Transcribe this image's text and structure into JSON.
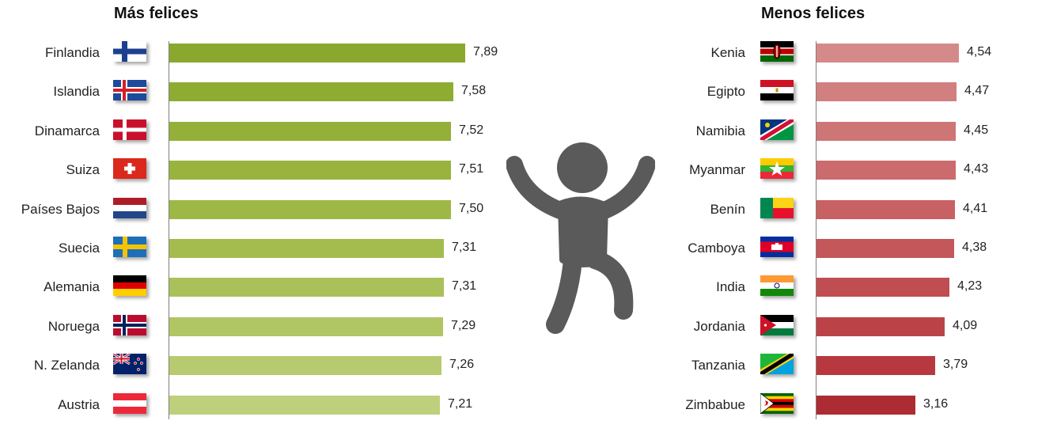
{
  "chart_data": [
    {
      "type": "bar",
      "orientation": "horizontal",
      "title": "Más felices",
      "categories": [
        "Finlandia",
        "Islandia",
        "Dinamarca",
        "Suiza",
        "Países Bajos",
        "Suecia",
        "Alemania",
        "Noruega",
        "N. Zelanda",
        "Austria"
      ],
      "values": [
        7.89,
        7.58,
        7.52,
        7.51,
        7.5,
        7.31,
        7.31,
        7.29,
        7.26,
        7.21
      ],
      "value_labels": [
        "7,89",
        "7,58",
        "7,52",
        "7,51",
        "7,50",
        "7,31",
        "7,31",
        "7,29",
        "7,26",
        "7,21"
      ],
      "flags": [
        "flag-finland-icon",
        "flag-iceland-icon",
        "flag-denmark-icon",
        "flag-switzerland-icon",
        "flag-netherlands-icon",
        "flag-sweden-icon",
        "flag-germany-icon",
        "flag-norway-icon",
        "flag-new-zealand-icon",
        "flag-austria-icon"
      ],
      "colors": [
        "#8aa82e",
        "#8fac32",
        "#94b038",
        "#99b43e",
        "#9eb845",
        "#a4bc4e",
        "#aac058",
        "#b0c563",
        "#b7ca6f",
        "#bed07c"
      ],
      "xlim": [
        0,
        7.89
      ],
      "grid": false,
      "legend": "none"
    },
    {
      "type": "bar",
      "orientation": "horizontal",
      "title": "Menos felices",
      "categories": [
        "Kenia",
        "Egipto",
        "Namibia",
        "Myanmar",
        "Benín",
        "Camboya",
        "India",
        "Jordania",
        "Tanzania",
        "Zimbabue"
      ],
      "values": [
        4.54,
        4.47,
        4.45,
        4.43,
        4.41,
        4.38,
        4.23,
        4.09,
        3.79,
        3.16
      ],
      "value_labels": [
        "4,54",
        "4,47",
        "4,45",
        "4,43",
        "4,41",
        "4,38",
        "4,23",
        "4,09",
        "3,79",
        "3,16"
      ],
      "flags": [
        "flag-kenya-icon",
        "flag-egypt-icon",
        "flag-namibia-icon",
        "flag-myanmar-icon",
        "flag-benin-icon",
        "flag-cambodia-icon",
        "flag-india-icon",
        "flag-jordan-icon",
        "flag-tanzania-icon",
        "flag-zimbabwe-icon"
      ],
      "colors": [
        "#d58a8a",
        "#d27f80",
        "#ce7576",
        "#cb6b6d",
        "#c76163",
        "#c3575a",
        "#bf4d51",
        "#bb4348",
        "#b7393f",
        "#ad2b32"
      ],
      "xlim": [
        0,
        4.54
      ],
      "grid": false,
      "legend": "none"
    }
  ],
  "decoration": {
    "icon": "happy-person-icon",
    "color": "#5a5a5a"
  }
}
